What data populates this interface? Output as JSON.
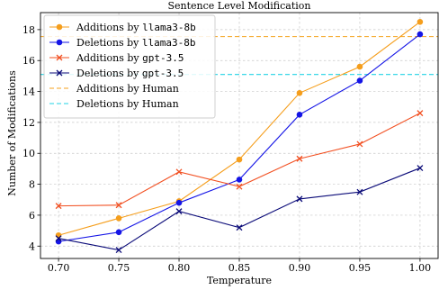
{
  "chart_data": {
    "type": "line",
    "title": "Sentence Level Modification",
    "xlabel": "Temperature",
    "ylabel": "Number of Modifications",
    "x": [
      0.7,
      0.75,
      0.8,
      0.85,
      0.9,
      0.95,
      1.0
    ],
    "xticks": [
      "0.70",
      "0.75",
      "0.80",
      "0.85",
      "0.90",
      "0.95",
      "1.00"
    ],
    "yticks": [
      "4",
      "6",
      "8",
      "10",
      "12",
      "14",
      "16",
      "18"
    ],
    "xlim": [
      0.685,
      1.015
    ],
    "ylim": [
      3.2,
      19.1
    ],
    "grid": true,
    "legend_position": "upper-left",
    "series": [
      {
        "name": "Additions by ",
        "name_code": "llama3-8b",
        "color": "#f59e1c",
        "marker": "circle",
        "values": [
          4.7,
          5.8,
          6.9,
          9.6,
          13.9,
          15.6,
          18.5
        ]
      },
      {
        "name": "Deletions by ",
        "name_code": "llama3-8b",
        "color": "#1414e6",
        "marker": "circle",
        "values": [
          4.3,
          4.9,
          6.8,
          8.3,
          12.5,
          14.7,
          17.7
        ]
      },
      {
        "name": "Additions by ",
        "name_code": "gpt-3.5",
        "color": "#f25022",
        "marker": "x",
        "values": [
          6.6,
          6.65,
          8.8,
          7.85,
          9.65,
          10.6,
          12.6
        ]
      },
      {
        "name": "Deletions by ",
        "name_code": "gpt-3.5",
        "color": "#0a0a78",
        "marker": "x",
        "values": [
          4.5,
          3.75,
          6.25,
          5.2,
          7.05,
          7.5,
          9.05
        ]
      }
    ],
    "hlines": [
      {
        "name": "Additions by Human",
        "color": "#f5a21c",
        "value": 17.55
      },
      {
        "name": "Deletions by Human",
        "color": "#22d3e6",
        "value": 15.1
      }
    ]
  }
}
